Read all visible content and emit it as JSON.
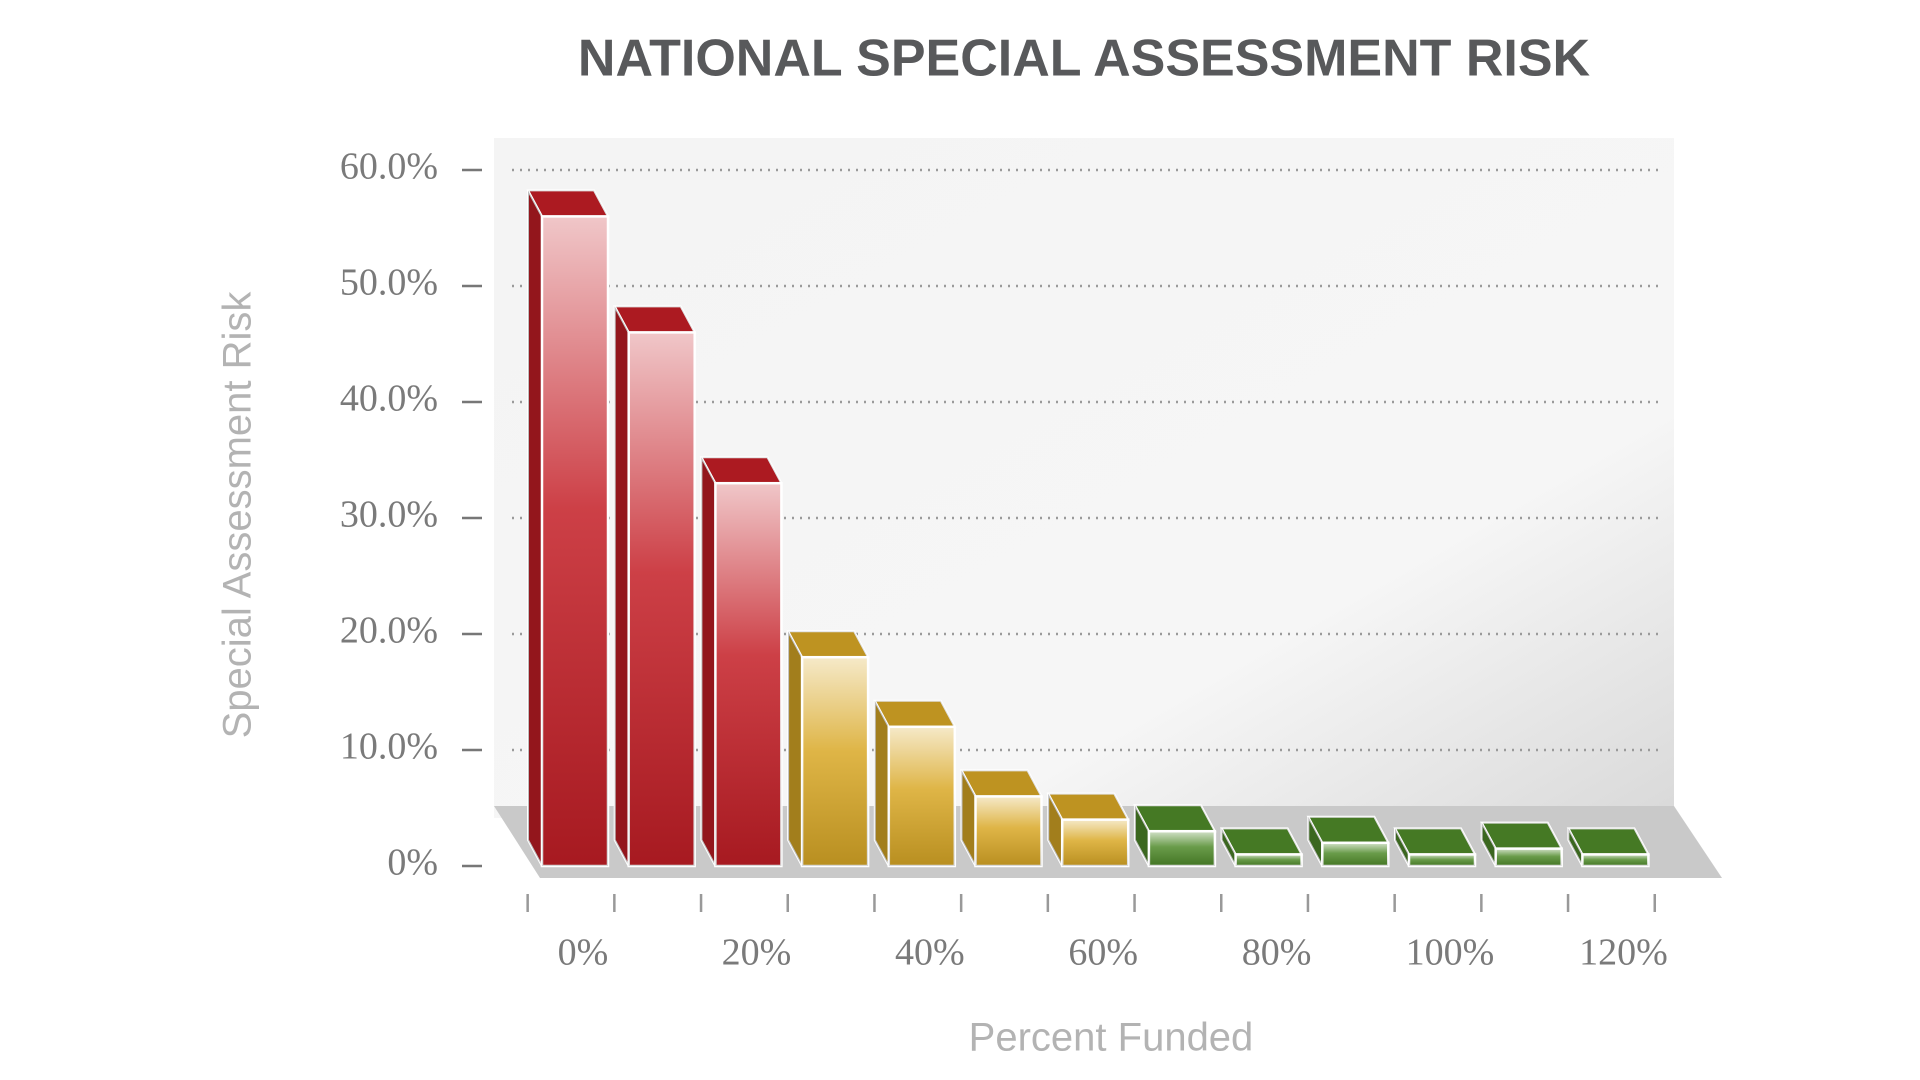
{
  "chart_data": {
    "type": "bar",
    "title": "NATIONAL SPECIAL ASSESSMENT RISK",
    "y_label": "Special Assessment Risk",
    "x_label": "Percent Funded",
    "categories": [
      "0%",
      null,
      "20%",
      null,
      "40%",
      null,
      "60%",
      null,
      "80%",
      null,
      "100%",
      null,
      "120%"
    ],
    "values": [
      56,
      46,
      33,
      18,
      12,
      6,
      4,
      3,
      1,
      2,
      1,
      1.5,
      1
    ],
    "colors": [
      "#c41e26",
      "#c41e26",
      "#c41e26",
      "#d9a826",
      "#d9a826",
      "#d9a826",
      "#d9a826",
      "#4f8a2a",
      "#4f8a2a",
      "#4f8a2a",
      "#4f8a2a",
      "#4f8a2a",
      "#4f8a2a"
    ],
    "ylim": [
      0,
      60
    ],
    "yticks": [
      {
        "value": 0,
        "label": "0%"
      },
      {
        "value": 10,
        "label": "10.0%"
      },
      {
        "value": 20,
        "label": "20.0%"
      },
      {
        "value": 30,
        "label": "30.0%"
      },
      {
        "value": 40,
        "label": "40.0%"
      },
      {
        "value": 50,
        "label": "50.0%"
      },
      {
        "value": 60,
        "label": "60.0%"
      }
    ],
    "grid": true
  }
}
